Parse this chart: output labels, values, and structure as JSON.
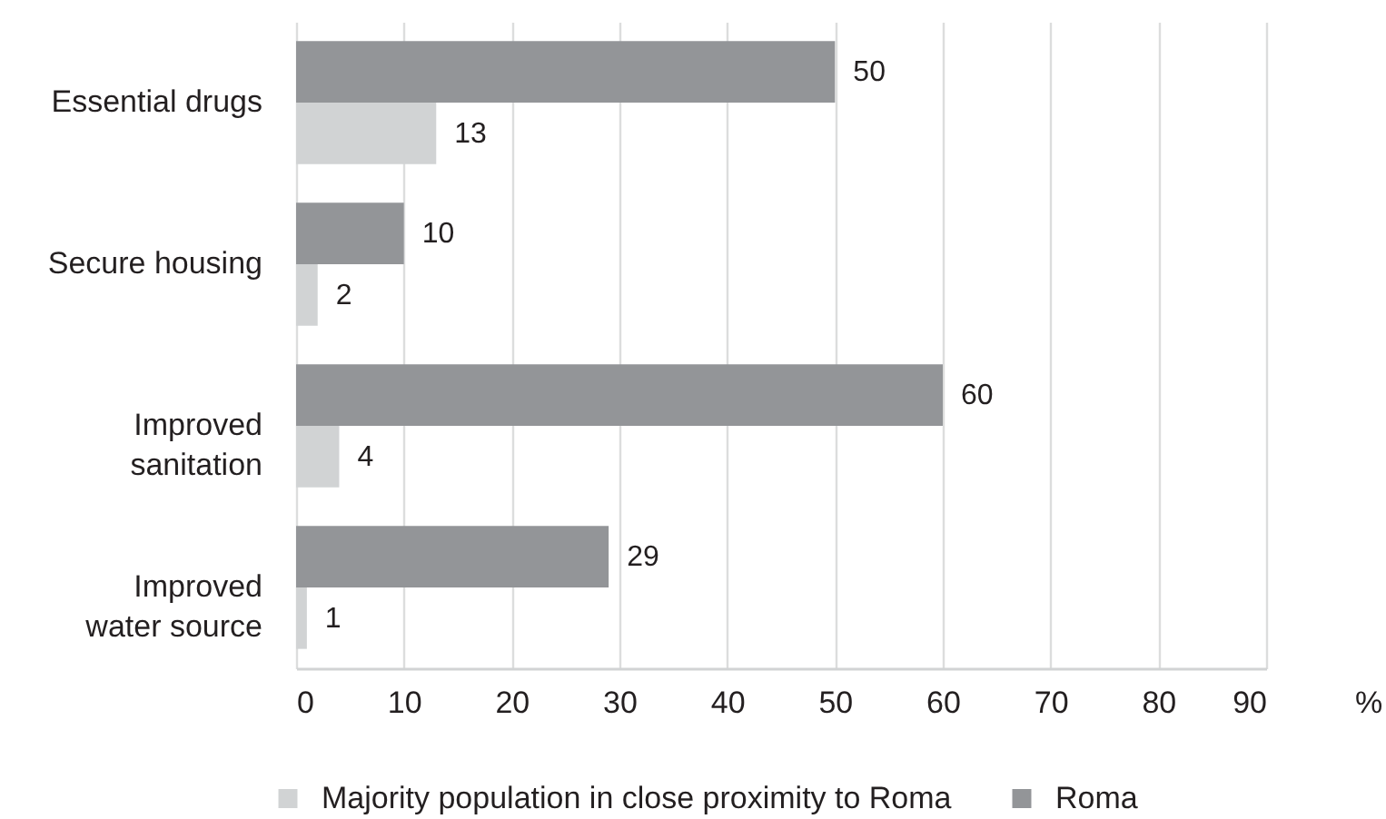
{
  "chart_data": {
    "type": "bar",
    "orientation": "horizontal",
    "categories": [
      "Essential drugs",
      "Secure housing",
      "Improved sanitation",
      "Improved water source"
    ],
    "series": [
      {
        "name": "Majority population in close proximity to Roma",
        "color": "#d1d3d4",
        "values": [
          13,
          2,
          4,
          1
        ]
      },
      {
        "name": "Roma",
        "color": "#939598",
        "values": [
          50,
          10,
          60,
          29
        ]
      }
    ],
    "xlabel": "%",
    "xlim": [
      0,
      90
    ],
    "xticks": [
      0,
      10,
      20,
      30,
      40,
      50,
      60,
      70,
      80,
      90
    ],
    "grid": "x",
    "legend": "bottom",
    "data_labels": true
  }
}
